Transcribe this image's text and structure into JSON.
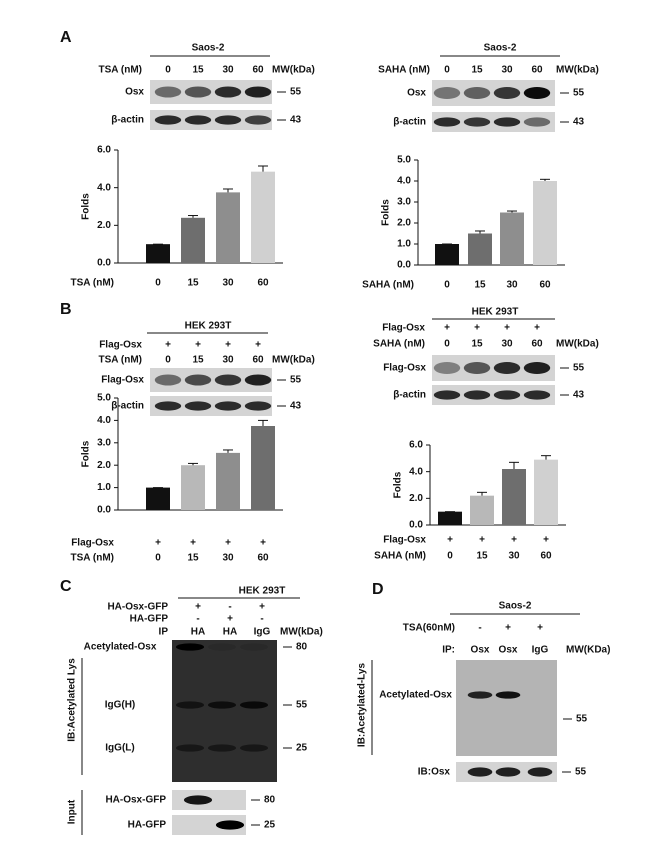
{
  "panel_labels": [
    "A",
    "B",
    "C",
    "D"
  ],
  "blots": [
    {
      "title": "Saos-2",
      "rows": [
        {
          "label": "TSA (nM)",
          "lanes": [
            0,
            15,
            30,
            60
          ]
        }
      ],
      "mw_header": "MW(kDa)",
      "bands": [
        {
          "label": "Osx",
          "mw": 55
        },
        {
          "label": "β-actin",
          "mw": 43
        }
      ]
    },
    {
      "title": "Saos-2",
      "rows": [
        {
          "label": "SAHA (nM)",
          "lanes": [
            0,
            15,
            30,
            60
          ]
        }
      ],
      "mw_header": "MW(kDa)",
      "bands": [
        {
          "label": "Osx",
          "mw": 55
        },
        {
          "label": "β-actin",
          "mw": 43
        }
      ]
    },
    {
      "title": "HEK 293T",
      "rows": [
        {
          "label": "Flag-Osx",
          "lanes": [
            "+",
            "+",
            "+",
            "+"
          ]
        },
        {
          "label": "TSA (nM)",
          "lanes": [
            0,
            15,
            30,
            60
          ]
        }
      ],
      "mw_header": "MW(kDa)",
      "bands": [
        {
          "label": "Flag-Osx",
          "mw": 55
        },
        {
          "label": "β-actin",
          "mw": 43
        }
      ]
    },
    {
      "title": "HEK 293T",
      "rows": [
        {
          "label": "Flag-Osx",
          "lanes": [
            "+",
            "+",
            "+",
            "+"
          ]
        },
        {
          "label": "SAHA (nM)",
          "lanes": [
            0,
            15,
            30,
            60
          ]
        }
      ],
      "mw_header": "MW(kDa)",
      "bands": [
        {
          "label": "Flag-Osx",
          "mw": 55
        },
        {
          "label": "β-actin",
          "mw": 43
        }
      ]
    },
    {
      "title": "HEK 293T",
      "rows": [
        {
          "label": "HA-Osx-GFP",
          "lanes": [
            "+",
            "-",
            "+"
          ]
        },
        {
          "label": "HA-GFP",
          "lanes": [
            "-",
            "+",
            "-"
          ]
        },
        {
          "label": "IP",
          "lanes": [
            "HA",
            "HA",
            "IgG"
          ]
        }
      ],
      "mw_header": "MW(kDa)",
      "probe": "IB:Acetylated Lys",
      "main_blot": [
        {
          "label": "Acetylated-Osx",
          "mw": 80
        },
        {
          "label": "IgG(H)",
          "mw": 55
        },
        {
          "label": "IgG(L)",
          "mw": 25
        }
      ],
      "input_label": "Input",
      "bands": [
        {
          "label": "HA-Osx-GFP",
          "mw": 80
        },
        {
          "label": "HA-GFP",
          "mw": 25
        }
      ]
    },
    {
      "title": "Saos-2",
      "rows": [
        {
          "label": "TSA(60nM)",
          "lanes": [
            "-",
            "+",
            "+"
          ]
        },
        {
          "label": "IP:",
          "lanes": [
            "Osx",
            "Osx",
            "IgG"
          ]
        }
      ],
      "mw_header": "MW(KDa)",
      "probe": "IB:Acetylated-Lys",
      "main_blot": [
        {
          "label": "Acetylated-Osx",
          "mw": 55
        }
      ],
      "bands": [
        {
          "label": "IB:Osx",
          "mw": 55
        }
      ]
    }
  ],
  "chart_data": [
    {
      "type": "bar",
      "y_label": "Folds",
      "x_label": "TSA (nM)",
      "categories": [
        "0",
        "15",
        "30",
        "60"
      ],
      "values": [
        1.0,
        2.4,
        3.75,
        4.85
      ],
      "errors": [
        0,
        0.12,
        0.18,
        0.3
      ],
      "colors": [
        "#111111",
        "#6e6e6e",
        "#8e8e8e",
        "#d0d0d0"
      ],
      "ylim": [
        0,
        6
      ],
      "yticks": [
        {
          "value": 0,
          "label": "0.0"
        },
        {
          "value": 2,
          "label": "2.0"
        },
        {
          "value": 4,
          "label": "4.0"
        },
        {
          "value": 6,
          "label": "6.0"
        }
      ]
    },
    {
      "type": "bar",
      "y_label": "Folds",
      "x_label": "SAHA (nM)",
      "categories": [
        "0",
        "15",
        "30",
        "60"
      ],
      "values": [
        1.0,
        1.5,
        2.5,
        4.0
      ],
      "errors": [
        0,
        0.12,
        0.07,
        0.08
      ],
      "colors": [
        "#111111",
        "#6e6e6e",
        "#8e8e8e",
        "#d0d0d0"
      ],
      "ylim": [
        0,
        5
      ],
      "yticks": [
        {
          "value": 0,
          "label": "0.0"
        },
        {
          "value": 1,
          "label": "1.0"
        },
        {
          "value": 2,
          "label": "2.0"
        },
        {
          "value": 3,
          "label": "3.0"
        },
        {
          "value": 4,
          "label": "4.0"
        },
        {
          "value": 5,
          "label": "5.0"
        }
      ]
    },
    {
      "type": "bar",
      "y_label": "Folds",
      "x_label": "TSA (nM)",
      "categories": [
        "0",
        "15",
        "30",
        "60"
      ],
      "x_rows": [
        {
          "label": "Flag-Osx",
          "values": [
            "+",
            "+",
            "+",
            "+"
          ]
        }
      ],
      "values": [
        1.0,
        2.0,
        2.55,
        3.75
      ],
      "errors": [
        0,
        0.08,
        0.13,
        0.25
      ],
      "colors": [
        "#111111",
        "#b8b8b8",
        "#8e8e8e",
        "#6e6e6e"
      ],
      "ylim": [
        0,
        5
      ],
      "yticks": [
        {
          "value": 0,
          "label": "0.0"
        },
        {
          "value": 1,
          "label": "1.0"
        },
        {
          "value": 2,
          "label": "2.0"
        },
        {
          "value": 3,
          "label": "3.0"
        },
        {
          "value": 4,
          "label": "4.0"
        },
        {
          "value": 5,
          "label": "5.0"
        }
      ]
    },
    {
      "type": "bar",
      "y_label": "Folds",
      "x_label": "SAHA (nM)",
      "categories": [
        "0",
        "15",
        "30",
        "60"
      ],
      "x_rows": [
        {
          "label": "Flag-Osx",
          "values": [
            "+",
            "+",
            "+",
            "+"
          ]
        }
      ],
      "values": [
        1.0,
        2.2,
        4.2,
        4.9
      ],
      "errors": [
        0,
        0.25,
        0.5,
        0.3
      ],
      "colors": [
        "#111111",
        "#b8b8b8",
        "#6e6e6e",
        "#d0d0d0"
      ],
      "ylim": [
        0,
        6
      ],
      "yticks": [
        {
          "value": 0,
          "label": "0.0"
        },
        {
          "value": 2,
          "label": "2.0"
        },
        {
          "value": 4,
          "label": "4.0"
        },
        {
          "value": 6,
          "label": "6.0"
        }
      ]
    }
  ]
}
